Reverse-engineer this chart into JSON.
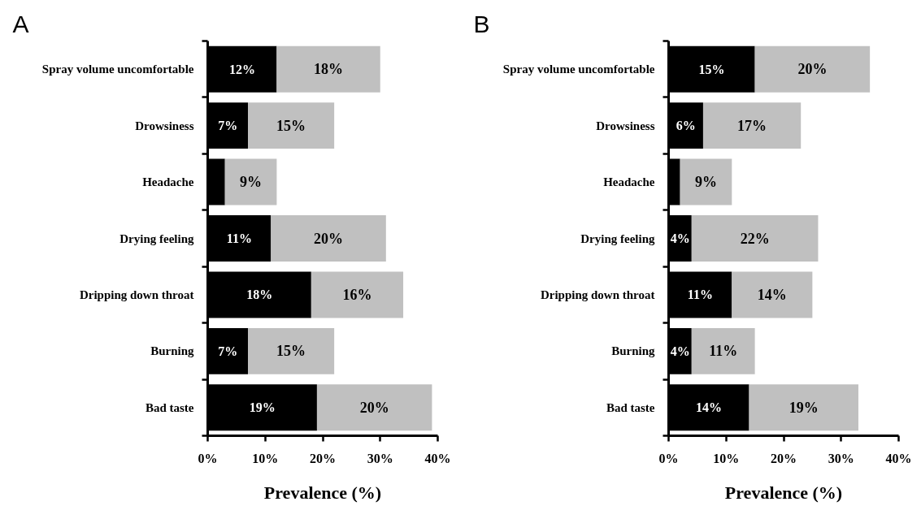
{
  "chart_data": [
    {
      "type": "bar",
      "title": "A",
      "orientation": "horizontal",
      "stacked": true,
      "grid": false,
      "xlabel": "Prevalence (%)",
      "categories": [
        "Spray volume uncomfortable",
        "Drowsiness",
        "Headache",
        "Drying feeling",
        "Dripping down throat",
        "Burning",
        "Bad taste"
      ],
      "series": [
        {
          "color": "#000000",
          "values": [
            12,
            7,
            3,
            11,
            18,
            7,
            19
          ],
          "value_labels": [
            "12%",
            "7%",
            null,
            "11%",
            "18%",
            "7%",
            "19%"
          ]
        },
        {
          "color": "#c0c0c0",
          "values": [
            18,
            15,
            9,
            20,
            16,
            15,
            20
          ],
          "value_labels": [
            "18%",
            "15%",
            "9%",
            "20%",
            "16%",
            "15%",
            "20%"
          ]
        }
      ],
      "xlim": [
        0,
        40
      ],
      "xticks": [
        {
          "value": 0,
          "label": "0%"
        },
        {
          "value": 10,
          "label": "10%"
        },
        {
          "value": 20,
          "label": "20%"
        },
        {
          "value": 30,
          "label": "30%"
        },
        {
          "value": 40,
          "label": "40%"
        }
      ]
    },
    {
      "type": "bar",
      "title": "B",
      "orientation": "horizontal",
      "stacked": true,
      "grid": false,
      "xlabel": "Prevalence (%)",
      "categories": [
        "Spray volume uncomfortable",
        "Drowsiness",
        "Headache",
        "Drying feeling",
        "Dripping down throat",
        "Burning",
        "Bad taste"
      ],
      "series": [
        {
          "color": "#000000",
          "values": [
            15,
            6,
            2,
            4,
            11,
            4,
            14
          ],
          "value_labels": [
            "15%",
            "6%",
            null,
            "4%",
            "11%",
            "4%",
            "14%"
          ]
        },
        {
          "color": "#c0c0c0",
          "values": [
            20,
            17,
            9,
            22,
            14,
            11,
            19
          ],
          "value_labels": [
            "20%",
            "17%",
            "9%",
            "22%",
            "14%",
            "11%",
            "19%"
          ]
        }
      ],
      "xlim": [
        0,
        40
      ],
      "xticks": [
        {
          "value": 0,
          "label": "0%"
        },
        {
          "value": 10,
          "label": "10%"
        },
        {
          "value": 20,
          "label": "20%"
        },
        {
          "value": 30,
          "label": "30%"
        },
        {
          "value": 40,
          "label": "40%"
        }
      ]
    }
  ]
}
